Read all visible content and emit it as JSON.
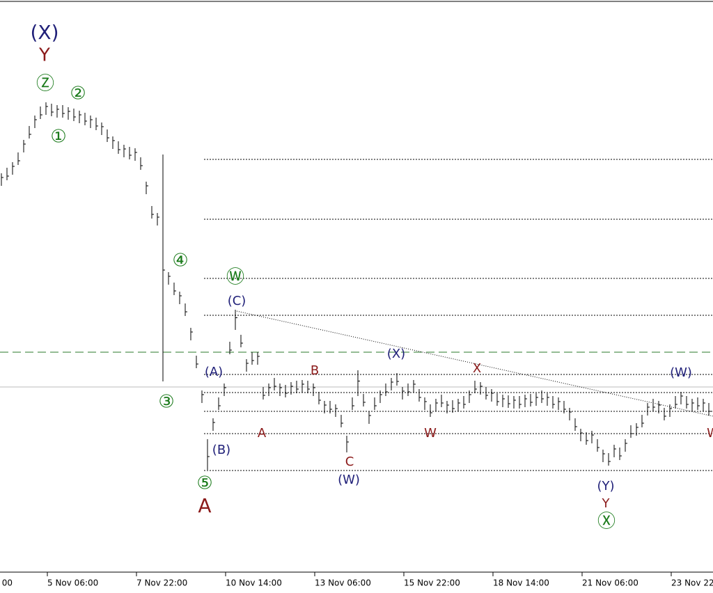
{
  "chart_data": {
    "type": "hl-bars",
    "xticks": [
      "00",
      "5 Nov 06:00",
      "7 Nov 22:00",
      "10 Nov 14:00",
      "13 Nov 06:00",
      "15 Nov 22:00",
      "18 Nov 14:00",
      "21 Nov 06:00",
      "23 Nov 22:00"
    ],
    "ylim": [
      0,
      820
    ],
    "color": "#000000",
    "high": [
      573,
      581,
      589,
      603,
      621,
      641,
      656,
      669,
      675,
      673,
      671,
      671,
      668,
      666,
      663,
      660,
      656,
      653,
      646,
      636,
      626,
      619,
      614,
      611,
      609,
      596,
      561,
      526,
      516,
      600,
      431,
      416,
      403,
      386,
      351,
      311,
      261,
      191,
      221,
      251,
      271,
      331,
      377,
      341,
      306,
      316,
      316,
      266,
      271,
      279,
      271,
      269,
      273,
      275,
      276,
      275,
      271,
      259,
      246,
      246,
      241,
      226,
      196,
      251,
      290,
      256,
      231,
      251,
      261,
      271,
      279,
      286,
      266,
      271,
      276,
      263,
      251,
      241,
      249,
      255,
      246,
      247,
      249,
      253,
      261,
      275,
      273,
      266,
      263,
      257,
      255,
      254,
      253,
      253,
      255,
      256,
      257,
      261,
      257,
      253,
      251,
      246,
      236,
      221,
      206,
      201,
      203,
      191,
      176,
      171,
      183,
      179,
      191,
      211,
      214,
      226,
      243,
      249,
      246,
      236,
      241,
      253,
      259,
      253,
      249,
      251,
      249,
      243
    ],
    "low": [
      555,
      563,
      571,
      585,
      603,
      623,
      638,
      651,
      657,
      655,
      653,
      653,
      650,
      648,
      645,
      642,
      638,
      635,
      628,
      618,
      608,
      601,
      596,
      593,
      591,
      578,
      543,
      508,
      498,
      274,
      413,
      398,
      385,
      368,
      333,
      293,
      243,
      147,
      203,
      233,
      253,
      313,
      348,
      323,
      288,
      298,
      298,
      248,
      253,
      261,
      253,
      251,
      255,
      257,
      258,
      257,
      253,
      241,
      228,
      228,
      223,
      208,
      172,
      233,
      253,
      238,
      213,
      233,
      243,
      253,
      261,
      268,
      248,
      253,
      258,
      245,
      233,
      223,
      231,
      237,
      228,
      229,
      231,
      235,
      243,
      257,
      255,
      248,
      245,
      239,
      237,
      236,
      235,
      235,
      237,
      238,
      239,
      243,
      239,
      235,
      233,
      228,
      218,
      203,
      188,
      183,
      185,
      173,
      158,
      153,
      165,
      161,
      173,
      193,
      196,
      208,
      225,
      231,
      228,
      218,
      223,
      235,
      241,
      235,
      231,
      233,
      231,
      225
    ],
    "labels": [
      {
        "text": "(X)",
        "color": "#1f1f78"
      },
      {
        "text": "Y",
        "color": "#8b1a1a"
      },
      {
        "text": "Ⓩ",
        "color": "#1a7a1a"
      },
      {
        "text": "②",
        "color": "#1a7a1a"
      },
      {
        "text": "①",
        "color": "#1a7a1a"
      },
      {
        "text": "④",
        "color": "#1a7a1a"
      },
      {
        "text": "Ⓦ",
        "color": "#1a7a1a"
      },
      {
        "text": "③",
        "color": "#1a7a1a"
      },
      {
        "text": "⑤",
        "color": "#1a7a1a"
      },
      {
        "text": "A",
        "color": "#8b1a1a"
      },
      {
        "text": "Ⓧ",
        "color": "#1a7a1a"
      },
      {
        "text": "(C)",
        "color": "#1f1f78"
      },
      {
        "text": "(A)",
        "color": "#1f1f78"
      },
      {
        "text": "(B)",
        "color": "#1f1f78"
      },
      {
        "text": "(W)",
        "color": "#1f1f78"
      },
      {
        "text": "(X)",
        "color": "#1f1f78"
      },
      {
        "text": "(Y)",
        "color": "#1f1f78"
      },
      {
        "text": "(W)",
        "color": "#1f1f78"
      },
      {
        "text": "B",
        "color": "#8b1a1a"
      },
      {
        "text": "A",
        "color": "#8b1a1a"
      },
      {
        "text": "C",
        "color": "#8b1a1a"
      },
      {
        "text": "W",
        "color": "#8b1a1a"
      },
      {
        "text": "X",
        "color": "#8b1a1a"
      },
      {
        "text": "Y",
        "color": "#8b1a1a"
      },
      {
        "text": "W",
        "color": "#8b1a1a"
      }
    ]
  }
}
